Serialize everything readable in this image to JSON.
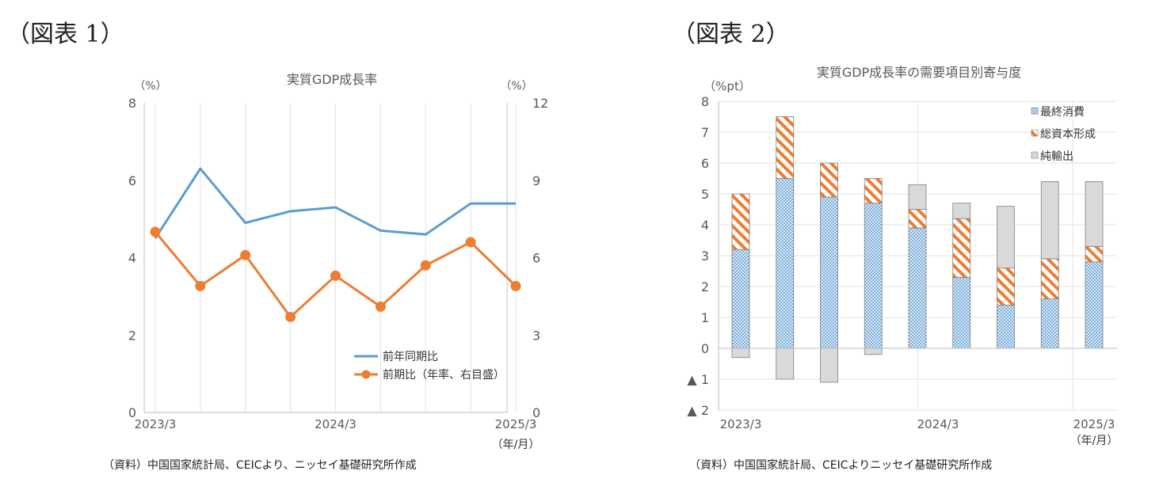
{
  "figure1": {
    "label": "（図表 1）",
    "source": "（資料）中国国家統計局、CEICより、ニッセイ基礎研究所作成"
  },
  "figure2": {
    "label": "（図表 2）",
    "source": "（資料）中国国家統計局、CEICよりニッセイ基礎研究所作成"
  },
  "chart_data": [
    {
      "type": "line",
      "title": "実質GDP成長率",
      "left_unit": "（%）",
      "right_unit": "（%）",
      "x": [
        "2023/3",
        "2023/6",
        "2023/9",
        "2023/12",
        "2024/3",
        "2024/6",
        "2024/9",
        "2024/12",
        "2025/3"
      ],
      "x_tick_labels": [
        "2023/3",
        "2024/3",
        "2025/3"
      ],
      "x_unit": "（年/月）",
      "ylim_left": [
        0,
        8
      ],
      "yticks_left": [
        0,
        2,
        4,
        6,
        8
      ],
      "ylim_right": [
        0,
        12
      ],
      "yticks_right": [
        0,
        3,
        6,
        9,
        12
      ],
      "grid": "vertical",
      "legend_position": "bottom-right",
      "series": [
        {
          "name": "前年同期比",
          "axis": "left",
          "color": "#5b9bd5",
          "marker": "none",
          "values": [
            4.5,
            6.3,
            4.9,
            5.2,
            5.3,
            4.7,
            4.6,
            5.4,
            5.4
          ]
        },
        {
          "name": "前期比（年率、右目盛）",
          "axis": "right",
          "color": "#ed7d31",
          "marker": "circle",
          "values": [
            7.0,
            4.9,
            6.1,
            3.7,
            5.3,
            4.1,
            5.7,
            6.6,
            4.9
          ]
        }
      ]
    },
    {
      "type": "bar",
      "stacked": true,
      "title": "実質GDP成長率の需要項目別寄与度",
      "y_unit": "（%pt）",
      "x": [
        "2023/3",
        "2023/6",
        "2023/9",
        "2023/12",
        "2024/3",
        "2024/6",
        "2024/9",
        "2024/12",
        "2025/3"
      ],
      "x_tick_labels": [
        "2023/3",
        "2024/3",
        "2025/3"
      ],
      "x_unit": "（年/月）",
      "ylim": [
        -2,
        8
      ],
      "yticks": [
        -2,
        -1,
        0,
        1,
        2,
        3,
        4,
        5,
        6,
        7,
        8
      ],
      "ytick_labels": [
        "▲ 2",
        "▲ 1",
        "0",
        "1",
        "2",
        "3",
        "4",
        "5",
        "6",
        "7",
        "8"
      ],
      "grid": "both",
      "legend_position": "top-right",
      "series": [
        {
          "name": "最終消費",
          "pattern": "blue-crosshatch",
          "color": "#9dc3e6",
          "values": [
            3.2,
            5.5,
            4.9,
            4.7,
            3.9,
            2.3,
            1.4,
            1.6,
            2.8
          ]
        },
        {
          "name": "総資本形成",
          "pattern": "orange-diagonal",
          "color": "#ed7d31",
          "values": [
            1.8,
            2.0,
            1.1,
            0.8,
            0.6,
            1.9,
            1.2,
            1.3,
            0.5
          ]
        },
        {
          "name": "純輸出",
          "pattern": "solid-grey",
          "color": "#d9d9d9",
          "values": [
            -0.3,
            -1.0,
            -1.1,
            -0.2,
            0.8,
            0.5,
            2.0,
            2.5,
            2.1
          ]
        }
      ]
    }
  ]
}
